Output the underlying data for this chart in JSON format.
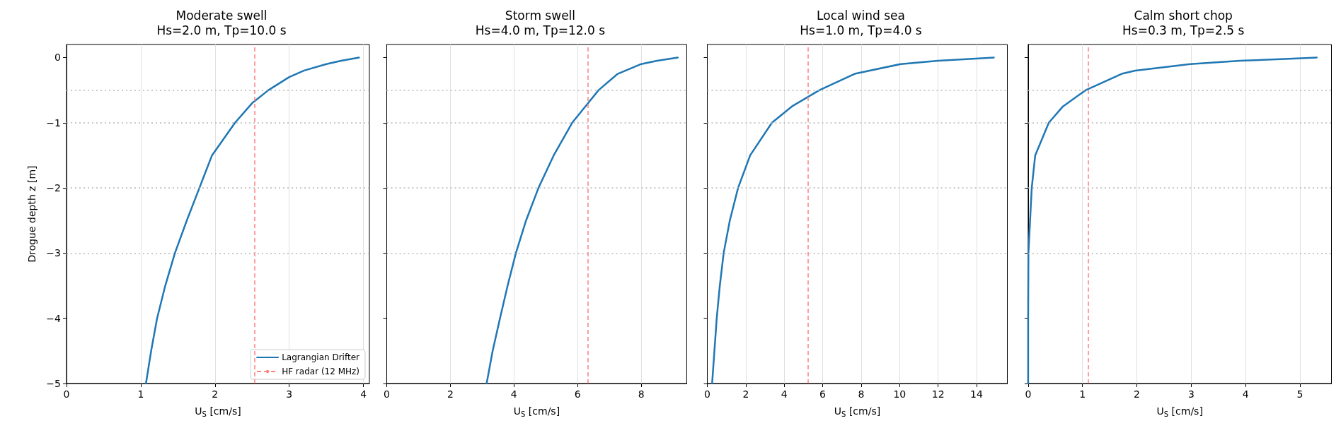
{
  "chart_data": [
    {
      "type": "line",
      "title": "Moderate swell",
      "subtitle": "Hs=2.0 m, Tp=10.0 s",
      "xlabel": "U$_{S}$ [cm/s]",
      "ylabel": "Drogue depth z [m]",
      "xlim": [
        0,
        4.08
      ],
      "xticks": [
        0,
        1,
        2,
        3,
        4
      ],
      "ylim": [
        -5,
        0.2
      ],
      "yticks": [
        -5,
        -4,
        -3,
        -2,
        -1,
        0
      ],
      "grid": "x",
      "legend": "bottom right",
      "line_style": "solid",
      "marker": "none",
      "series": [
        {
          "name": "Lagrangian Drifter",
          "color": "#1f77b4",
          "x": [
            3.94,
            3.7,
            3.5,
            3.2,
            3.0,
            2.72,
            2.5,
            2.27,
            1.96,
            1.79,
            1.62,
            1.46,
            1.33,
            1.22,
            1.14,
            1.07
          ],
          "values": [
            0,
            -0.05,
            -0.1,
            -0.2,
            -0.3,
            -0.5,
            -0.7,
            -1.0,
            -1.5,
            -2.0,
            -2.5,
            -3.0,
            -3.5,
            -4.0,
            -4.5,
            -5.0
          ]
        }
      ],
      "ref_lines": [
        {
          "axis": "x",
          "value": 2.53,
          "label": "HF radar (12 MHz)",
          "color": "#ff8080",
          "line_style": "dashed"
        },
        {
          "axis": "y",
          "value": -0.5,
          "color": "#b8b8b8",
          "line_style": "dotted"
        },
        {
          "axis": "y",
          "value": -1,
          "color": "#b8b8b8",
          "line_style": "dotted"
        },
        {
          "axis": "y",
          "value": -2,
          "color": "#b8b8b8",
          "line_style": "dotted"
        },
        {
          "axis": "y",
          "value": -3,
          "color": "#b8b8b8",
          "line_style": "dotted"
        }
      ]
    },
    {
      "type": "line",
      "title": "Storm swell",
      "subtitle": "Hs=4.0 m, Tp=12.0 s",
      "xlabel": "U$_{S}$ [cm/s]",
      "xlim": [
        0,
        9.43
      ],
      "xticks": [
        0,
        2,
        4,
        6,
        8
      ],
      "ylim": [
        -5,
        0.2
      ],
      "yticks": [
        -5,
        -4,
        -3,
        -2,
        -1,
        0
      ],
      "grid": "x",
      "tick_labels": "x",
      "line_style": "solid",
      "marker": "none",
      "series": [
        {
          "color": "#1f77b4",
          "x": [
            9.15,
            8.5,
            8.0,
            7.26,
            6.66,
            6.33,
            5.83,
            5.25,
            4.77,
            4.38,
            4.06,
            3.8,
            3.56,
            3.33,
            3.14
          ],
          "values": [
            0,
            -0.05,
            -0.1,
            -0.25,
            -0.5,
            -0.7,
            -1.0,
            -1.5,
            -2.0,
            -2.5,
            -3.0,
            -3.5,
            -4.0,
            -4.5,
            -5.0
          ]
        }
      ],
      "ref_lines": [
        {
          "axis": "x",
          "value": 6.33,
          "color": "#ff8080",
          "line_style": "dashed"
        },
        {
          "axis": "y",
          "value": -0.5,
          "color": "#b8b8b8",
          "line_style": "dotted"
        },
        {
          "axis": "y",
          "value": -1,
          "color": "#b8b8b8",
          "line_style": "dotted"
        },
        {
          "axis": "y",
          "value": -2,
          "color": "#b8b8b8",
          "line_style": "dotted"
        },
        {
          "axis": "y",
          "value": -3,
          "color": "#b8b8b8",
          "line_style": "dotted"
        }
      ]
    },
    {
      "type": "line",
      "title": "Local wind sea",
      "subtitle": "Hs=1.0 m, Tp=4.0 s",
      "xlabel": "U$_{S}$ [cm/s]",
      "xlim": [
        0,
        15.6
      ],
      "xticks": [
        0,
        2,
        4,
        6,
        8,
        10,
        12,
        14
      ],
      "ylim": [
        -5,
        0.2
      ],
      "yticks": [
        -5,
        -4,
        -3,
        -2,
        -1,
        0
      ],
      "grid": "x",
      "tick_labels": "x",
      "line_style": "solid",
      "marker": "none",
      "series": [
        {
          "color": "#1f77b4",
          "x": [
            14.9,
            13.8,
            12.0,
            10.06,
            7.66,
            5.83,
            4.4,
            3.36,
            2.23,
            1.6,
            1.17,
            0.85,
            0.65,
            0.49,
            0.25
          ],
          "values": [
            0,
            -0.02,
            -0.05,
            -0.1,
            -0.25,
            -0.5,
            -0.75,
            -1.0,
            -1.5,
            -2.0,
            -2.5,
            -3.0,
            -3.5,
            -4.0,
            -5.0
          ]
        }
      ],
      "ref_lines": [
        {
          "axis": "x",
          "value": 5.22,
          "color": "#ff8080",
          "line_style": "dashed"
        },
        {
          "axis": "y",
          "value": -0.5,
          "color": "#b8b8b8",
          "line_style": "dotted"
        },
        {
          "axis": "y",
          "value": -1,
          "color": "#b8b8b8",
          "line_style": "dotted"
        },
        {
          "axis": "y",
          "value": -2,
          "color": "#b8b8b8",
          "line_style": "dotted"
        },
        {
          "axis": "y",
          "value": -3,
          "color": "#b8b8b8",
          "line_style": "dotted"
        }
      ]
    },
    {
      "type": "line",
      "title": "Calm short chop",
      "subtitle": "Hs=0.3 m, Tp=2.5 s",
      "xlabel": "U$_{S}$ [cm/s]",
      "xlim": [
        0,
        5.58
      ],
      "xticks": [
        0,
        1,
        2,
        3,
        4,
        5
      ],
      "ylim": [
        -5,
        0.2
      ],
      "yticks": [
        -5,
        -4,
        -3,
        -2,
        -1,
        0
      ],
      "grid": "x",
      "tick_labels": "x",
      "line_style": "solid",
      "marker": "none",
      "series": [
        {
          "color": "#1f77b4",
          "x": [
            5.31,
            4.8,
            3.9,
            2.98,
            1.97,
            1.72,
            1.06,
            0.64,
            0.38,
            0.13,
            0.066,
            0.005,
            0.0,
            0.0
          ],
          "values": [
            0,
            -0.02,
            -0.05,
            -0.1,
            -0.2,
            -0.25,
            -0.5,
            -0.75,
            -1.0,
            -1.5,
            -2.0,
            -3.0,
            -4.0,
            -5.0
          ]
        }
      ],
      "ref_lines": [
        {
          "axis": "x",
          "value": 1.1,
          "color": "#ff8080",
          "line_style": "dashed"
        },
        {
          "axis": "y",
          "value": -0.5,
          "color": "#b8b8b8",
          "line_style": "dotted"
        },
        {
          "axis": "y",
          "value": -1,
          "color": "#b8b8b8",
          "line_style": "dotted"
        },
        {
          "axis": "y",
          "value": -2,
          "color": "#b8b8b8",
          "line_style": "dotted"
        },
        {
          "axis": "y",
          "value": -3,
          "color": "#b8b8b8",
          "line_style": "dotted"
        }
      ]
    }
  ]
}
